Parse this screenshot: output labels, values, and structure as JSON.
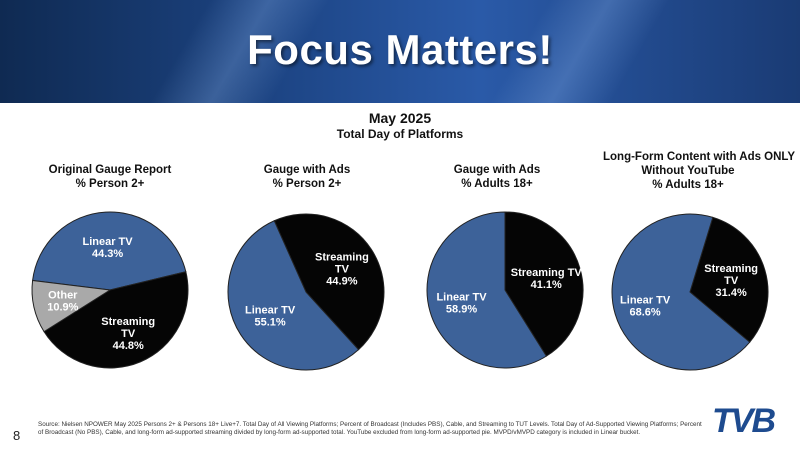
{
  "header": {
    "title": "Focus Matters!",
    "subtitle": "May 2025",
    "subtitle2": "Total Day of Platforms"
  },
  "colors": {
    "linear_tv": "#3d6299",
    "streaming_tv": "#050505",
    "other": "#a9a9a9",
    "banner": "#1d4585",
    "logo": "#1e4b8f"
  },
  "chart_data": [
    {
      "type": "pie",
      "title": [
        "Original Gauge Report",
        "% Person 2+"
      ],
      "slices": [
        {
          "name": "Linear TV",
          "value": 44.3,
          "label": [
            "Linear TV",
            "44.3%"
          ]
        },
        {
          "name": "Streaming TV",
          "value": 44.8,
          "label": [
            "Streaming",
            "TV",
            "44.8%"
          ]
        },
        {
          "name": "Other",
          "value": 10.9,
          "label": [
            "Other",
            "10.9%"
          ]
        }
      ]
    },
    {
      "type": "pie",
      "title": [
        "Gauge with Ads",
        "% Person 2+"
      ],
      "slices": [
        {
          "name": "Streaming TV",
          "value": 44.9,
          "label": [
            "Streaming",
            "TV",
            "44.9%"
          ]
        },
        {
          "name": "Linear TV",
          "value": 55.1,
          "label": [
            "Linear TV",
            "55.1%"
          ]
        }
      ]
    },
    {
      "type": "pie",
      "title": [
        "Gauge with Ads",
        "% Adults 18+"
      ],
      "slices": [
        {
          "name": "Streaming TV",
          "value": 41.1,
          "label": [
            "Streaming TV",
            "41.1%"
          ]
        },
        {
          "name": "Linear TV",
          "value": 58.9,
          "label": [
            "Linear TV",
            "58.9%"
          ]
        }
      ]
    },
    {
      "type": "pie",
      "title": [
        "Long-Form Content with Ads ONLY",
        "Without YouTube",
        "% Adults 18+"
      ],
      "slices": [
        {
          "name": "Streaming TV",
          "value": 31.4,
          "label": [
            "Streaming",
            "TV",
            "31.4%"
          ]
        },
        {
          "name": "Linear TV",
          "value": 68.6,
          "label": [
            "Linear TV",
            "68.6%"
          ]
        }
      ]
    }
  ],
  "footnote": "Source: Nielsen NPOWER May 2025 Persons 2+ & Persons 18+ Live+7. Total Day of All Viewing Platforms; Percent of Broadcast (Includes PBS), Cable, and Streaming to TUT Levels. Total Day of Ad-Supported Viewing Platforms; Percent of Broadcast (No PBS), Cable, and long-form ad-supported streaming divided by long-form ad-supported total. YouTube excluded from long-form ad-supported pie. MVPD/vMVPD category is included in Linear bucket.",
  "page_number": "8",
  "logo_text": "TVB"
}
